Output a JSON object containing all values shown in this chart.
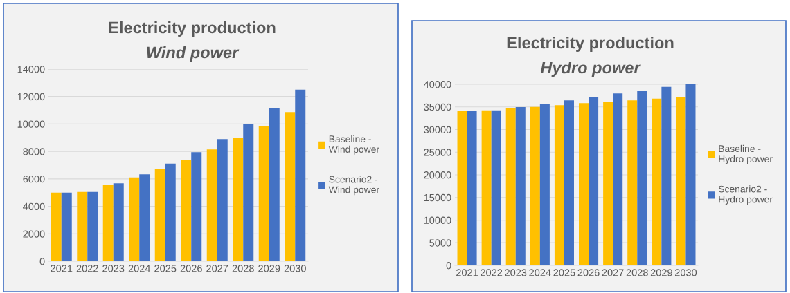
{
  "chart_data": [
    {
      "type": "bar",
      "title": "Electricity production",
      "subtitle": "Wind power",
      "categories": [
        "2021",
        "2022",
        "2023",
        "2024",
        "2025",
        "2026",
        "2027",
        "2028",
        "2029",
        "2030"
      ],
      "series": [
        {
          "name": "Baseline -\nWind power",
          "color": "#ffc000",
          "values": [
            5000,
            5050,
            5540,
            6100,
            6700,
            7400,
            8140,
            8970,
            9860,
            10860
          ]
        },
        {
          "name": "Scenario2 -\nWind power",
          "color": "#4472c4",
          "values": [
            5000,
            5050,
            5680,
            6330,
            7110,
            7950,
            8900,
            10000,
            11180,
            12500
          ]
        }
      ],
      "ylim": [
        0,
        14000
      ],
      "yticks": [
        0,
        2000,
        4000,
        6000,
        8000,
        10000,
        12000,
        14000
      ],
      "grid": "y",
      "legend": "right"
    },
    {
      "type": "bar",
      "title": "Electricity production",
      "subtitle": "Hydro power",
      "categories": [
        "2021",
        "2022",
        "2023",
        "2024",
        "2025",
        "2026",
        "2027",
        "2028",
        "2029",
        "2030"
      ],
      "series": [
        {
          "name": "Baseline -\nHydro power",
          "color": "#ffc000",
          "values": [
            34100,
            34250,
            34660,
            35010,
            35370,
            35830,
            36030,
            36440,
            36850,
            37100
          ]
        },
        {
          "name": "Scenario2 -\nHydro power",
          "color": "#4472c4",
          "values": [
            34100,
            34250,
            34960,
            35730,
            36440,
            37100,
            37960,
            38630,
            39440,
            40000
          ]
        }
      ],
      "ylim": [
        0,
        40000
      ],
      "yticks": [
        0,
        5000,
        10000,
        15000,
        20000,
        25000,
        30000,
        35000,
        40000
      ],
      "grid": "y",
      "legend": "right"
    }
  ]
}
